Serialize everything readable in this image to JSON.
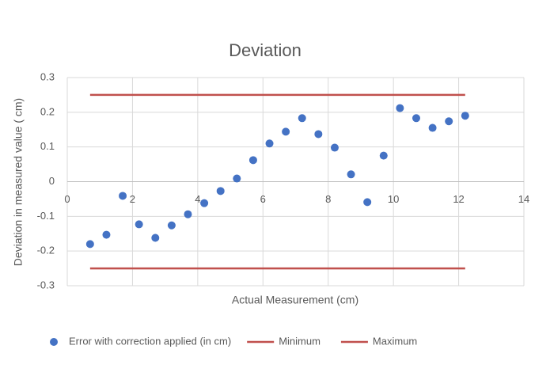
{
  "chart_data": {
    "type": "scatter",
    "title": "Deviation",
    "xlabel": "Actual Measurement  (cm)",
    "ylabel": "Deviation in measured value ( cm)",
    "xlim": [
      0,
      14
    ],
    "xticks": [
      0,
      2,
      4,
      6,
      8,
      10,
      12,
      14
    ],
    "ylim": [
      -0.3,
      0.3
    ],
    "yticks": [
      0.3,
      0.2,
      0.1,
      0,
      -0.1,
      -0.2,
      -0.3
    ],
    "grid": true,
    "legend": "bottom",
    "series": [
      {
        "name": "Error with correction applied (in cm)",
        "color": "#4472c4",
        "mode": "markers",
        "x": [
          0.7,
          1.2,
          1.7,
          2.2,
          2.7,
          3.2,
          3.7,
          4.2,
          4.7,
          5.2,
          5.7,
          6.2,
          6.7,
          7.2,
          7.7,
          8.2,
          8.7,
          9.2,
          9.7,
          10.2,
          10.7,
          11.2,
          11.7,
          12.2
        ],
        "values": [
          -0.18,
          -0.153,
          -0.041,
          -0.123,
          -0.162,
          -0.126,
          -0.094,
          -0.062,
          -0.027,
          0.009,
          0.062,
          0.11,
          0.144,
          0.183,
          0.137,
          0.098,
          0.021,
          -0.059,
          0.075,
          0.212,
          0.183,
          0.155,
          0.174,
          0.19
        ]
      },
      {
        "name": "Minimum",
        "color": "#c0504d",
        "mode": "line",
        "x": [
          0.7,
          12.2
        ],
        "values": [
          -0.25,
          -0.25
        ]
      },
      {
        "name": "Maximum",
        "color": "#c0504d",
        "mode": "line",
        "x": [
          0.7,
          12.2
        ],
        "values": [
          0.25,
          0.25
        ]
      }
    ]
  }
}
